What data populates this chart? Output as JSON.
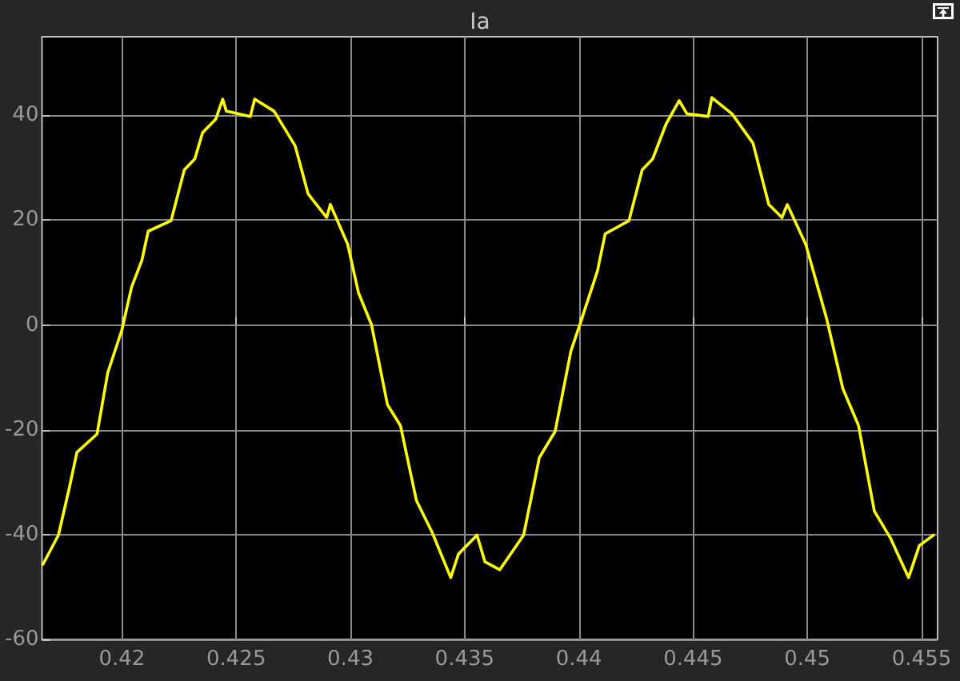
{
  "chart_data": {
    "type": "line",
    "title": "Ia",
    "xlim": [
      0.4165,
      0.4557
    ],
    "ylim": [
      -60,
      55
    ],
    "xticks": [
      0.42,
      0.425,
      0.43,
      0.435,
      0.44,
      0.445,
      0.45,
      0.455
    ],
    "yticks": [
      -60,
      -40,
      -20,
      0,
      20,
      40
    ],
    "grid": true,
    "marker": "none",
    "line_style": "solid",
    "series": [
      {
        "color": "#ffff00",
        "x": [
          0.41654,
          0.41722,
          0.41768,
          0.41803,
          0.41891,
          0.41938,
          0.42,
          0.42042,
          0.42087,
          0.42115,
          0.42215,
          0.42273,
          0.42319,
          0.42353,
          0.42411,
          0.42441,
          0.42457,
          0.42562,
          0.42581,
          0.42666,
          0.42758,
          0.42815,
          0.42896,
          0.42912,
          0.42988,
          0.43035,
          0.43092,
          0.43162,
          0.43219,
          0.43289,
          0.43358,
          0.43439,
          0.43473,
          0.43554,
          0.43589,
          0.43654,
          0.43758,
          0.43827,
          0.43896,
          0.43965,
          0.44012,
          0.44081,
          0.44115,
          0.44219,
          0.44277,
          0.44323,
          0.44381,
          0.44439,
          0.44473,
          0.44566,
          0.44582,
          0.4467,
          0.44762,
          0.44831,
          0.44889,
          0.44912,
          0.44993,
          0.45085,
          0.45155,
          0.45224,
          0.45293,
          0.45363,
          0.45443,
          0.4549,
          0.45552
        ],
        "values": [
          -45.7,
          -40.1,
          -31.4,
          -24.3,
          -20.8,
          -9.1,
          -0.9,
          7.2,
          12.3,
          17.9,
          19.9,
          29.6,
          31.7,
          36.7,
          39.3,
          43.1,
          40.8,
          39.8,
          43.1,
          40.8,
          34.2,
          25.0,
          20.5,
          23.0,
          15.4,
          6.2,
          0.1,
          -15.2,
          -19.2,
          -33.5,
          -39.6,
          -48.2,
          -43.7,
          -40.1,
          -45.2,
          -46.7,
          -40.1,
          -25.3,
          -20.3,
          -5.0,
          1.1,
          10.3,
          17.4,
          19.9,
          29.6,
          31.7,
          38.3,
          42.8,
          40.3,
          39.8,
          43.4,
          40.3,
          34.7,
          23.0,
          20.5,
          23.0,
          15.4,
          1.1,
          -12.1,
          -19.2,
          -35.5,
          -40.6,
          -48.2,
          -42.1,
          -40.1
        ]
      }
    ]
  }
}
